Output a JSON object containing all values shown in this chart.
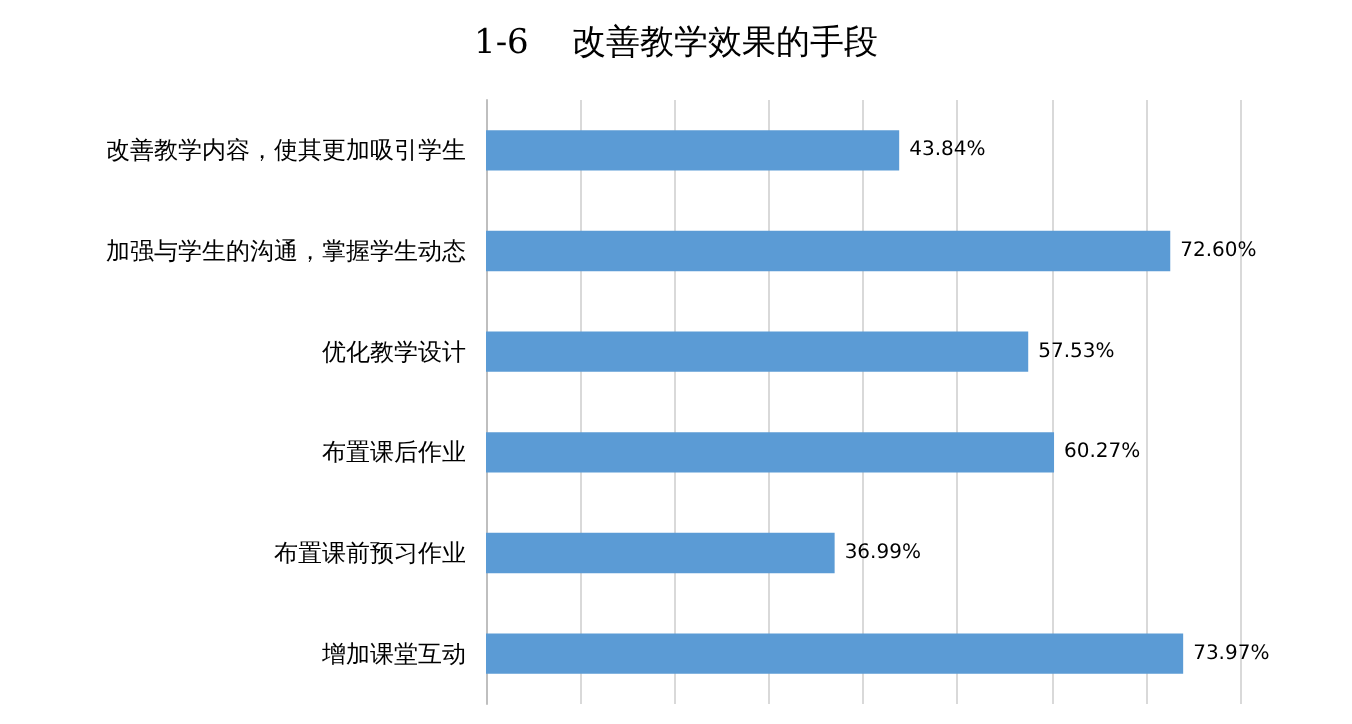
{
  "chart_data": {
    "type": "bar",
    "orientation": "horizontal",
    "title": "1-6    改善教学效果的手段",
    "categories": [
      "改善教学内容，使其更加吸引学生",
      "加强与学生的沟通，掌握学生动态",
      "优化教学设计",
      "布置课后作业",
      "布置课前预习作业",
      "增加课堂互动"
    ],
    "values": [
      43.84,
      72.6,
      57.53,
      60.27,
      36.99,
      73.97
    ],
    "value_labels": [
      "43.84%",
      "72.60%",
      "57.53%",
      "60.27%",
      "36.99%",
      "73.97%"
    ],
    "color": "#5b9bd5",
    "xlim": [
      0,
      80
    ],
    "xticks": [
      {
        "value": 0,
        "label": null
      },
      {
        "value": 10,
        "label": null
      },
      {
        "value": 20,
        "label": null
      },
      {
        "value": 30,
        "label": null
      },
      {
        "value": 40,
        "label": null
      },
      {
        "value": 50,
        "label": null
      },
      {
        "value": 60,
        "label": null
      },
      {
        "value": 70,
        "label": null
      },
      {
        "value": 80,
        "label": null
      }
    ],
    "grid": "x"
  }
}
